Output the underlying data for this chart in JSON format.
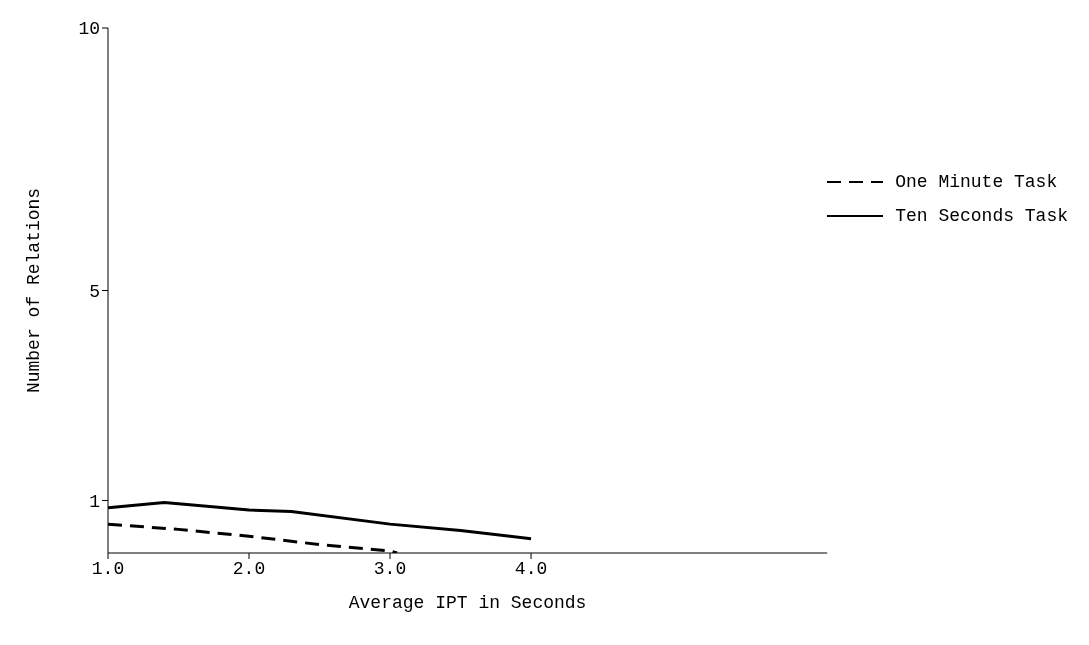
{
  "chart_data": {
    "type": "line",
    "xlabel": "Average IPT in Seconds",
    "ylabel": "Number of Relations",
    "xlim": [
      1.0,
      6.1
    ],
    "xticks": [
      {
        "value": 1,
        "label": "1.0"
      },
      {
        "value": 2,
        "label": "2.0"
      },
      {
        "value": 3,
        "label": "3.0"
      },
      {
        "value": 4,
        "label": "4.0"
      }
    ],
    "ylim": [
      0,
      10
    ],
    "yticks": [
      1,
      5,
      10
    ],
    "grid": false,
    "legend": "right",
    "marker": "none",
    "series": [
      {
        "name": "One Minute Task",
        "color": "#000000",
        "line_style": "dashed",
        "x": [
          1.0,
          1.5,
          2.0,
          2.5,
          3.0,
          3.05
        ],
        "values": [
          0.55,
          0.45,
          0.32,
          0.16,
          0.04,
          0.0
        ]
      },
      {
        "name": "Ten Seconds Task",
        "color": "#000000",
        "line_style": "solid",
        "x": [
          1.0,
          1.4,
          2.0,
          2.3,
          3.0,
          3.5,
          4.0
        ],
        "values": [
          0.86,
          0.96,
          0.82,
          0.79,
          0.55,
          0.43,
          0.27
        ]
      }
    ]
  }
}
